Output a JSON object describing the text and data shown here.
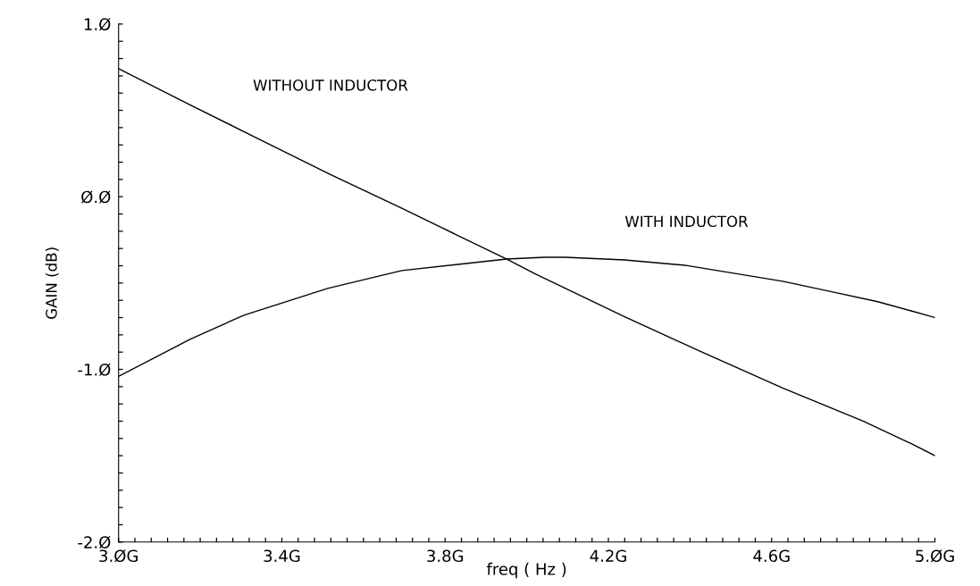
{
  "chart_data": {
    "type": "line",
    "xlabel": "freq ( Hz )",
    "ylabel": "GAIN (dB)",
    "series": [
      {
        "name": "WITHOUT INDUCTOR",
        "color": "#000000",
        "x": [
          3.0,
          3.176,
          3.329,
          3.519,
          3.694,
          3.95,
          4.022,
          4.24,
          4.422,
          4.627,
          4.824,
          4.94,
          5.0
        ],
        "values": [
          0.742,
          0.531,
          0.351,
          0.129,
          -0.067,
          -0.361,
          -0.448,
          -0.696,
          -0.892,
          -1.108,
          -1.299,
          -1.428,
          -1.5
        ]
      },
      {
        "name": "WITH INDUCTOR",
        "color": "#000000",
        "x": [
          3.0,
          3.176,
          3.307,
          3.512,
          3.694,
          3.95,
          4.044,
          4.094,
          4.24,
          4.387,
          4.627,
          4.75,
          4.86,
          4.94,
          5.0
        ],
        "values": [
          -1.041,
          -0.825,
          -0.686,
          -0.531,
          -0.428,
          -0.361,
          -0.351,
          -0.351,
          -0.366,
          -0.397,
          -0.49,
          -0.552,
          -0.608,
          -0.66,
          -0.7
        ]
      }
    ],
    "xlim": [
      3.0,
      5.0
    ],
    "ylim": [
      -2.0,
      1.0
    ],
    "xticks": [
      {
        "value": 3.0,
        "label": "3.ØG"
      },
      {
        "value": 3.04,
        "label": null
      },
      {
        "value": 3.08,
        "label": null
      },
      {
        "value": 3.12,
        "label": null
      },
      {
        "value": 3.16,
        "label": null
      },
      {
        "value": 3.2,
        "label": null
      },
      {
        "value": 3.24,
        "label": null
      },
      {
        "value": 3.28,
        "label": null
      },
      {
        "value": 3.32,
        "label": null
      },
      {
        "value": 3.36,
        "label": null
      },
      {
        "value": 3.4,
        "label": "3.4G"
      },
      {
        "value": 3.44,
        "label": null
      },
      {
        "value": 3.48,
        "label": null
      },
      {
        "value": 3.52,
        "label": null
      },
      {
        "value": 3.56,
        "label": null
      },
      {
        "value": 3.6,
        "label": null
      },
      {
        "value": 3.64,
        "label": null
      },
      {
        "value": 3.68,
        "label": null
      },
      {
        "value": 3.72,
        "label": null
      },
      {
        "value": 3.76,
        "label": null
      },
      {
        "value": 3.8,
        "label": "3.8G"
      },
      {
        "value": 3.84,
        "label": null
      },
      {
        "value": 3.88,
        "label": null
      },
      {
        "value": 3.92,
        "label": null
      },
      {
        "value": 3.96,
        "label": null
      },
      {
        "value": 4.0,
        "label": null
      },
      {
        "value": 4.04,
        "label": null
      },
      {
        "value": 4.08,
        "label": null
      },
      {
        "value": 4.12,
        "label": null
      },
      {
        "value": 4.16,
        "label": null
      },
      {
        "value": 4.2,
        "label": "4.2G"
      },
      {
        "value": 4.24,
        "label": null
      },
      {
        "value": 4.28,
        "label": null
      },
      {
        "value": 4.32,
        "label": null
      },
      {
        "value": 4.36,
        "label": null
      },
      {
        "value": 4.4,
        "label": null
      },
      {
        "value": 4.44,
        "label": null
      },
      {
        "value": 4.48,
        "label": null
      },
      {
        "value": 4.52,
        "label": null
      },
      {
        "value": 4.56,
        "label": null
      },
      {
        "value": 4.6,
        "label": "4.6G"
      },
      {
        "value": 4.64,
        "label": null
      },
      {
        "value": 4.68,
        "label": null
      },
      {
        "value": 4.72,
        "label": null
      },
      {
        "value": 4.76,
        "label": null
      },
      {
        "value": 4.8,
        "label": null
      },
      {
        "value": 4.84,
        "label": null
      },
      {
        "value": 4.88,
        "label": null
      },
      {
        "value": 4.92,
        "label": null
      },
      {
        "value": 4.96,
        "label": null
      },
      {
        "value": 5.0,
        "label": "5.ØG"
      }
    ],
    "yticks": [
      {
        "value": -2.0,
        "label": "-2.Ø"
      },
      {
        "value": -1.9,
        "label": null
      },
      {
        "value": -1.8,
        "label": null
      },
      {
        "value": -1.7,
        "label": null
      },
      {
        "value": -1.6,
        "label": null
      },
      {
        "value": -1.5,
        "label": null
      },
      {
        "value": -1.4,
        "label": null
      },
      {
        "value": -1.3,
        "label": null
      },
      {
        "value": -1.2,
        "label": null
      },
      {
        "value": -1.1,
        "label": null
      },
      {
        "value": -1.0,
        "label": "-1.Ø"
      },
      {
        "value": -0.9,
        "label": null
      },
      {
        "value": -0.8,
        "label": null
      },
      {
        "value": -0.7,
        "label": null
      },
      {
        "value": -0.6,
        "label": null
      },
      {
        "value": -0.5,
        "label": null
      },
      {
        "value": -0.4,
        "label": null
      },
      {
        "value": -0.3,
        "label": null
      },
      {
        "value": -0.2,
        "label": null
      },
      {
        "value": -0.1,
        "label": null
      },
      {
        "value": 0.0,
        "label": "Ø.Ø"
      },
      {
        "value": 0.1,
        "label": null
      },
      {
        "value": 0.2,
        "label": null
      },
      {
        "value": 0.3,
        "label": null
      },
      {
        "value": 0.4,
        "label": null
      },
      {
        "value": 0.5,
        "label": null
      },
      {
        "value": 0.6,
        "label": null
      },
      {
        "value": 0.7,
        "label": null
      },
      {
        "value": 0.8,
        "label": null
      },
      {
        "value": 0.9,
        "label": null
      },
      {
        "value": 1.0,
        "label": "1.Ø"
      }
    ],
    "grid": false,
    "legend": false,
    "marker": "none",
    "line_style": "solid"
  }
}
